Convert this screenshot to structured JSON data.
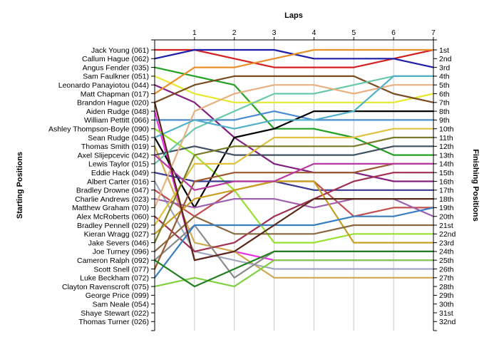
{
  "chart_data": {
    "type": "line",
    "title": "",
    "top_axis_label": "Laps",
    "left_axis_label": "Starting Positions",
    "right_axis_label": "Finishing Positions",
    "laps": [
      1,
      2,
      3,
      4,
      5,
      6,
      7
    ],
    "grid": true,
    "starting_labels": [
      "Jack Young (061)",
      "Callum Hague (062)",
      "Angus Fender (035)",
      "Sam Faulkner (051)",
      "Leonardo Panayiotou (044)",
      "Matt Chapman (017)",
      "Brandon Hague (020)",
      "Aiden Rudge (048)",
      "William Pettitt (066)",
      "Ashley Thompson-Boyle (090)",
      "Sean Rudge (045)",
      "Thomas Smith (019)",
      "Axel Slijepcevic (042)",
      "Lewis Taylor (015)",
      "Eddie Hack (049)",
      "Albert Carter (016)",
      "Bradley Drowne (047)",
      "Charlie Andrews (023)",
      "Matthew Graham (070)",
      "Alex McRoberts (060)",
      "Bradley Pennell (029)",
      "Kieran Wragg (027)",
      "Jake Severs (046)",
      "Joe Turney (096)",
      "Cameron Ralph (092)",
      "Scott Snell (077)",
      "Luke Beckham (072)",
      "Clayton Ravenscroft (075)",
      "George Price (099)",
      "Sam Neale (054)",
      "Shaye Stewart (022)",
      "Thomas Turner (026)"
    ],
    "finishing_labels": [
      "1st",
      "2nd",
      "3rd",
      "4th",
      "5th",
      "6th",
      "7th",
      "8th",
      "9th",
      "10th",
      "11th",
      "12th",
      "13th",
      "14th",
      "15th",
      "16th",
      "17th",
      "18th",
      "19th",
      "20th",
      "21st",
      "22nd",
      "23rd",
      "24th",
      "25th",
      "26th",
      "27th",
      "28th",
      "29th",
      "30th",
      "31st",
      "32nd"
    ],
    "series": [
      {
        "color": "#d42020",
        "positions": [
          1,
          1,
          2,
          3,
          3,
          3,
          2,
          1
        ]
      },
      {
        "color": "#1e1ea8",
        "positions": [
          2,
          1,
          1,
          1,
          2,
          2,
          2,
          3
        ]
      },
      {
        "color": "#22a022",
        "positions": [
          3,
          4,
          5,
          10,
          10,
          11,
          13,
          13
        ]
      },
      {
        "color": "#e8e830",
        "positions": [
          4,
          6,
          7,
          7,
          7,
          7,
          7,
          6
        ]
      },
      {
        "color": "#802080",
        "positions": [
          5,
          7,
          11,
          14,
          15,
          15,
          16,
          16
        ]
      },
      {
        "color": "#e8902a",
        "positions": [
          6,
          3,
          3,
          2,
          1,
          1,
          1,
          1
        ]
      },
      {
        "color": "#7a4a20",
        "positions": [
          7,
          5,
          4,
          4,
          4,
          4,
          6,
          7
        ]
      },
      {
        "color": "#e830e8",
        "positions": [
          8,
          25,
          24,
          25,
          25,
          25,
          25,
          25
        ]
      },
      {
        "color": "#4a8ad0",
        "positions": [
          9,
          9,
          9,
          8,
          9,
          9,
          9,
          9
        ]
      },
      {
        "color": "#98e030",
        "positions": [
          10,
          13,
          17,
          23,
          23,
          22,
          22,
          22
        ]
      },
      {
        "color": "#000000",
        "positions": [
          11,
          19,
          11,
          10,
          8,
          8,
          8,
          8
        ]
      },
      {
        "color": "#d0a850",
        "positions": [
          12,
          23,
          24,
          27,
          27,
          27,
          27,
          27
        ]
      },
      {
        "color": "#405060",
        "positions": [
          13,
          12,
          13,
          13,
          13,
          13,
          12,
          12
        ]
      },
      {
        "color": "#68c8a8",
        "positions": [
          14,
          10,
          8,
          6,
          6,
          5,
          4,
          4
        ]
      },
      {
        "color": "#3a3a90",
        "positions": [
          15,
          16,
          16,
          16,
          17,
          17,
          17,
          17
        ]
      },
      {
        "color": "#a0a8c0",
        "positions": [
          16,
          24,
          25,
          26,
          26,
          26,
          26,
          26
        ]
      },
      {
        "color": "#c05050",
        "positions": [
          17,
          20,
          17,
          16,
          16,
          20,
          19,
          19
        ]
      },
      {
        "color": "#a060b0",
        "positions": [
          18,
          19,
          18,
          18,
          19,
          18,
          18,
          20
        ]
      },
      {
        "color": "#e8b080",
        "positions": [
          19,
          8,
          6,
          5,
          5,
          6,
          5,
          5
        ]
      },
      {
        "color": "#a03050",
        "positions": [
          20,
          24,
          23,
          20,
          18,
          16,
          15,
          15
        ]
      },
      {
        "color": "#e0c040",
        "positions": [
          21,
          14,
          14,
          11,
          11,
          11,
          10,
          10
        ]
      },
      {
        "color": "#c8a020",
        "positions": [
          22,
          18,
          17,
          16,
          16,
          23,
          23,
          23
        ]
      },
      {
        "color": "#7a7a28",
        "positions": [
          23,
          13,
          12,
          12,
          12,
          12,
          11,
          11
        ]
      },
      {
        "color": "#8a6840",
        "positions": [
          24,
          20,
          22,
          22,
          22,
          21,
          21,
          21
        ]
      },
      {
        "color": "#8a8a8a",
        "positions": [
          25,
          21,
          27,
          24,
          24,
          24,
          24,
          24
        ]
      },
      {
        "color": "#9a5a30",
        "positions": [
          26,
          16,
          15,
          15,
          15,
          15,
          14,
          14
        ]
      },
      {
        "color": "#3a80c0",
        "positions": [
          27,
          21,
          21,
          21,
          21,
          20,
          20,
          19
        ]
      },
      {
        "color": "#80d040",
        "positions": [
          28,
          27,
          28,
          25,
          25,
          25,
          25,
          25
        ]
      },
      {
        "color": "#208020",
        "positions": [
          25,
          28,
          26,
          24,
          24,
          24,
          24,
          24
        ]
      },
      {
        "color": "#b83aa0",
        "positions": [
          13,
          17,
          16,
          16,
          14,
          14,
          14,
          14
        ]
      },
      {
        "color": "#50b0c8",
        "positions": [
          11,
          9,
          10,
          9,
          9,
          8,
          4,
          4
        ]
      },
      {
        "color": "#5a2a18",
        "positions": [
          7,
          25,
          24,
          21,
          18,
          18,
          18,
          18
        ]
      }
    ]
  }
}
